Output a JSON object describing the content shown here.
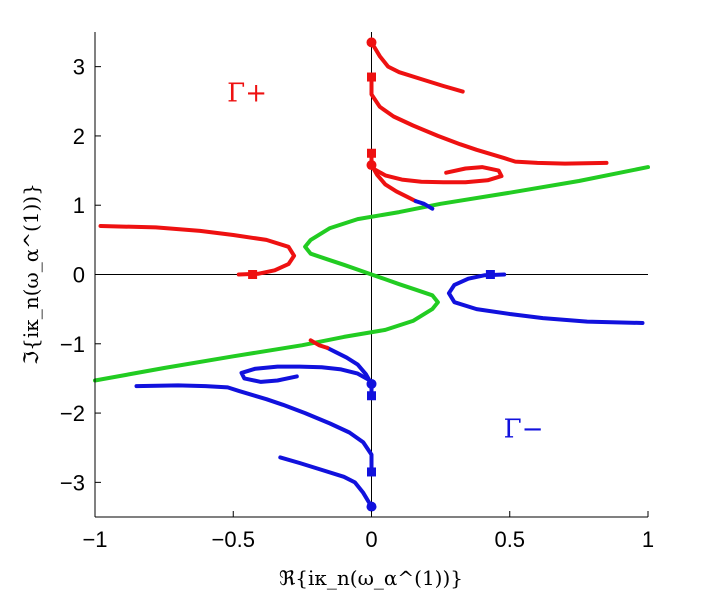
{
  "chart_data": {
    "type": "line",
    "title": "",
    "xlabel": "ℜ{iκ_n(ω_α^(1))}",
    "ylabel": "ℑ{iκ_n(ω_α^(1))}",
    "xlim": [
      -1,
      1
    ],
    "ylim": [
      -3.5,
      3.5
    ],
    "xticks": [
      -1,
      -0.5,
      0,
      0.5,
      1
    ],
    "xtick_labels": [
      "−1",
      "−0.5",
      "0",
      "0.5",
      "1"
    ],
    "yticks": [
      -3,
      -2,
      -1,
      0,
      1,
      2,
      3
    ],
    "ytick_labels": [
      "−3",
      "−2",
      "−1",
      "0",
      "1",
      "2",
      "3"
    ],
    "grid": false,
    "zero_lines": true,
    "colors": {
      "red": "#ee1111",
      "blue": "#1111dd",
      "green": "#22cc22"
    },
    "annotations": [
      {
        "text": "Γ+",
        "color": "#ee1111",
        "x": -0.45,
        "y": 2.5
      },
      {
        "text": "Γ−",
        "color": "#1111dd",
        "x": 0.55,
        "y": -2.35
      }
    ],
    "series": [
      {
        "color": "green",
        "points": [
          [
            -1.0,
            -1.53
          ],
          [
            -0.75,
            -1.35
          ],
          [
            -0.5,
            -1.18
          ],
          [
            -0.25,
            -1.02
          ],
          [
            -0.1,
            -0.9
          ],
          [
            0.05,
            -0.8
          ],
          [
            0.15,
            -0.67
          ],
          [
            0.22,
            -0.5
          ],
          [
            0.24,
            -0.4
          ],
          [
            0.22,
            -0.3
          ],
          [
            0.16,
            -0.22
          ],
          [
            0.1,
            -0.14
          ],
          [
            0.05,
            -0.07
          ],
          [
            0.0,
            0.0
          ],
          [
            -0.05,
            0.07
          ],
          [
            -0.1,
            0.14
          ],
          [
            -0.16,
            0.22
          ],
          [
            -0.22,
            0.3
          ],
          [
            -0.24,
            0.4
          ],
          [
            -0.22,
            0.5
          ],
          [
            -0.15,
            0.67
          ],
          [
            -0.05,
            0.8
          ],
          [
            0.1,
            0.9
          ],
          [
            0.25,
            1.02
          ],
          [
            0.5,
            1.18
          ],
          [
            0.75,
            1.35
          ],
          [
            1.0,
            1.55
          ]
        ]
      },
      {
        "color": "red",
        "points": [
          [
            -0.98,
            0.7
          ],
          [
            -0.78,
            0.68
          ],
          [
            -0.62,
            0.63
          ],
          [
            -0.5,
            0.57
          ],
          [
            -0.38,
            0.5
          ],
          [
            -0.3,
            0.4
          ],
          [
            -0.28,
            0.27
          ],
          [
            -0.3,
            0.15
          ],
          [
            -0.35,
            0.06
          ],
          [
            -0.41,
            0.01
          ],
          [
            -0.48,
            0.0
          ]
        ]
      },
      {
        "color": "red",
        "points": [
          [
            0.0,
            3.35
          ],
          [
            0.03,
            3.15
          ],
          [
            0.06,
            3.0
          ],
          [
            0.1,
            2.92
          ],
          [
            0.18,
            2.82
          ],
          [
            0.26,
            2.72
          ],
          [
            0.33,
            2.64
          ]
        ]
      },
      {
        "color": "red",
        "points": [
          [
            0.0,
            2.85
          ],
          [
            0.0,
            2.6
          ],
          [
            0.03,
            2.42
          ],
          [
            0.08,
            2.28
          ],
          [
            0.15,
            2.15
          ],
          [
            0.24,
            2.0
          ],
          [
            0.32,
            1.88
          ],
          [
            0.38,
            1.8
          ],
          [
            0.43,
            1.74
          ],
          [
            0.48,
            1.68
          ],
          [
            0.52,
            1.63
          ],
          [
            0.6,
            1.61
          ],
          [
            0.7,
            1.6
          ],
          [
            0.85,
            1.61
          ]
        ]
      },
      {
        "color": "red",
        "points": [
          [
            0.0,
            1.75
          ],
          [
            0.0,
            1.62
          ],
          [
            0.01,
            1.52
          ],
          [
            0.05,
            1.43
          ],
          [
            0.11,
            1.37
          ],
          [
            0.18,
            1.34
          ],
          [
            0.26,
            1.33
          ],
          [
            0.34,
            1.33
          ],
          [
            0.42,
            1.36
          ],
          [
            0.47,
            1.42
          ],
          [
            0.46,
            1.5
          ],
          [
            0.4,
            1.55
          ],
          [
            0.34,
            1.53
          ],
          [
            0.27,
            1.47
          ]
        ]
      },
      {
        "color": "red",
        "points": [
          [
            0.0,
            1.58
          ],
          [
            0.02,
            1.44
          ],
          [
            0.05,
            1.3
          ],
          [
            0.09,
            1.2
          ],
          [
            0.13,
            1.12
          ],
          [
            0.16,
            1.06
          ]
        ]
      },
      {
        "color": "blue",
        "points": [
          [
            0.16,
            1.06
          ],
          [
            0.19,
            1.02
          ],
          [
            0.22,
            0.95
          ]
        ]
      },
      {
        "color": "blue",
        "points": [
          [
            0.98,
            -0.7
          ],
          [
            0.78,
            -0.68
          ],
          [
            0.62,
            -0.63
          ],
          [
            0.5,
            -0.57
          ],
          [
            0.38,
            -0.5
          ],
          [
            0.3,
            -0.4
          ],
          [
            0.28,
            -0.27
          ],
          [
            0.3,
            -0.15
          ],
          [
            0.35,
            -0.06
          ],
          [
            0.41,
            -0.01
          ],
          [
            0.48,
            0.0
          ]
        ]
      },
      {
        "color": "blue",
        "points": [
          [
            0.0,
            -3.35
          ],
          [
            -0.03,
            -3.15
          ],
          [
            -0.06,
            -3.0
          ],
          [
            -0.1,
            -2.92
          ],
          [
            -0.18,
            -2.82
          ],
          [
            -0.26,
            -2.72
          ],
          [
            -0.33,
            -2.64
          ]
        ]
      },
      {
        "color": "blue",
        "points": [
          [
            0.0,
            -2.85
          ],
          [
            0.0,
            -2.6
          ],
          [
            -0.03,
            -2.42
          ],
          [
            -0.08,
            -2.28
          ],
          [
            -0.15,
            -2.15
          ],
          [
            -0.24,
            -2.0
          ],
          [
            -0.32,
            -1.88
          ],
          [
            -0.38,
            -1.8
          ],
          [
            -0.43,
            -1.74
          ],
          [
            -0.48,
            -1.68
          ],
          [
            -0.52,
            -1.63
          ],
          [
            -0.6,
            -1.61
          ],
          [
            -0.7,
            -1.6
          ],
          [
            -0.85,
            -1.61
          ]
        ]
      },
      {
        "color": "blue",
        "points": [
          [
            0.0,
            -1.75
          ],
          [
            0.0,
            -1.62
          ],
          [
            -0.01,
            -1.52
          ],
          [
            -0.05,
            -1.43
          ],
          [
            -0.11,
            -1.37
          ],
          [
            -0.18,
            -1.34
          ],
          [
            -0.26,
            -1.33
          ],
          [
            -0.34,
            -1.33
          ],
          [
            -0.42,
            -1.36
          ],
          [
            -0.47,
            -1.42
          ],
          [
            -0.46,
            -1.5
          ],
          [
            -0.4,
            -1.55
          ],
          [
            -0.34,
            -1.53
          ],
          [
            -0.27,
            -1.47
          ]
        ]
      },
      {
        "color": "blue",
        "points": [
          [
            0.0,
            -1.58
          ],
          [
            -0.02,
            -1.44
          ],
          [
            -0.05,
            -1.3
          ],
          [
            -0.09,
            -1.2
          ],
          [
            -0.13,
            -1.12
          ],
          [
            -0.16,
            -1.06
          ]
        ]
      },
      {
        "color": "red",
        "points": [
          [
            -0.16,
            -1.06
          ],
          [
            -0.19,
            -1.02
          ],
          [
            -0.22,
            -0.95
          ]
        ]
      }
    ],
    "markers": [
      {
        "color": "red",
        "shape": "circle",
        "x": 0.0,
        "y": 3.35
      },
      {
        "color": "red",
        "shape": "square",
        "x": 0.0,
        "y": 2.85
      },
      {
        "color": "red",
        "shape": "square",
        "x": 0.0,
        "y": 1.75
      },
      {
        "color": "red",
        "shape": "circle",
        "x": 0.0,
        "y": 1.58
      },
      {
        "color": "red",
        "shape": "square",
        "x": -0.43,
        "y": 0.0
      },
      {
        "color": "blue",
        "shape": "square",
        "x": 0.43,
        "y": 0.0
      },
      {
        "color": "blue",
        "shape": "circle",
        "x": 0.0,
        "y": -1.58
      },
      {
        "color": "blue",
        "shape": "square",
        "x": 0.0,
        "y": -1.75
      },
      {
        "color": "blue",
        "shape": "square",
        "x": 0.0,
        "y": -2.85
      },
      {
        "color": "blue",
        "shape": "circle",
        "x": 0.0,
        "y": -3.35
      }
    ]
  }
}
